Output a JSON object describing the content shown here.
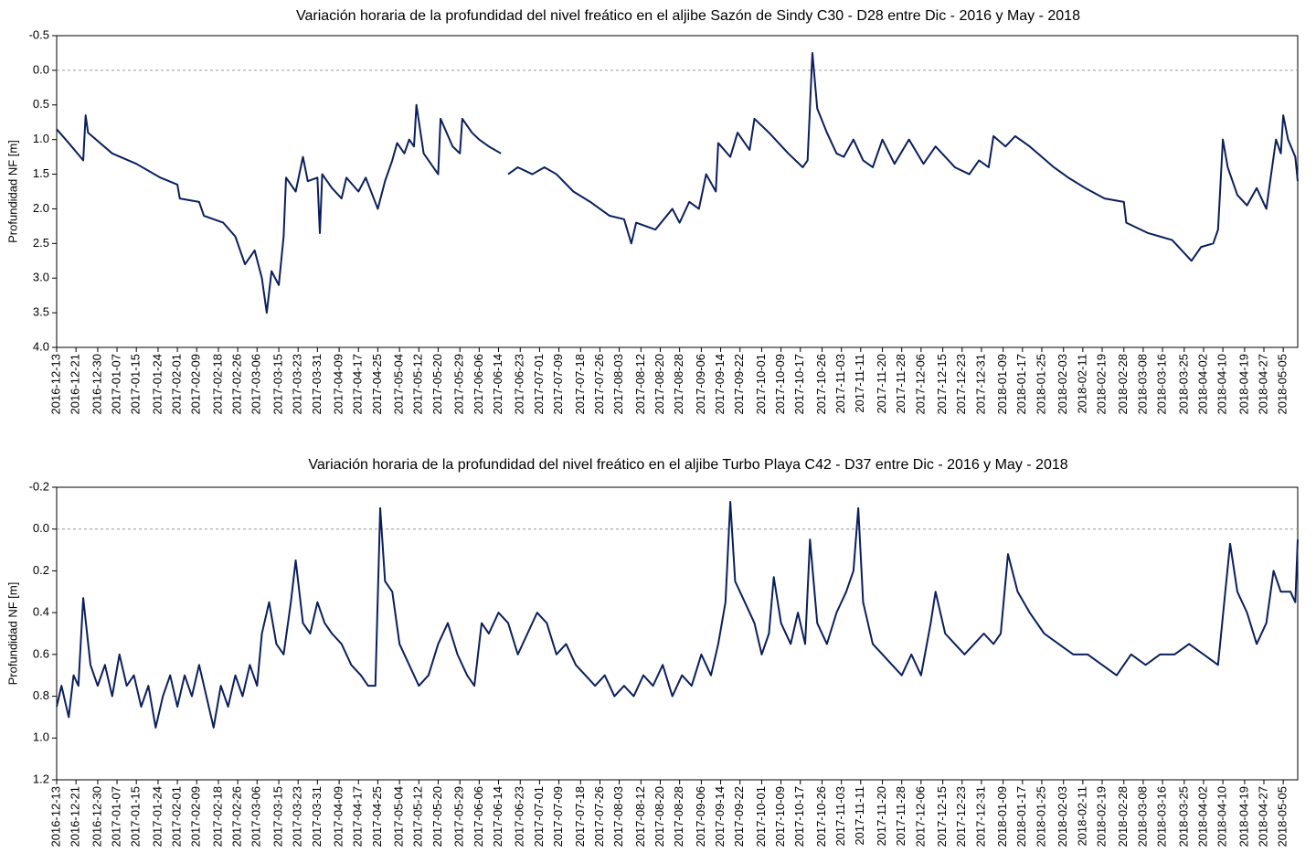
{
  "chart_data": [
    {
      "type": "line",
      "title": "Variación horaria de la profundidad del nivel freático en el aljibe Sazón de Sindy C30 - D28 entre Dic - 2016 y May - 2018",
      "y_label": "Profundidad NF [m]",
      "y_inverted": true,
      "hline": 0,
      "color": "#0b1f5c",
      "xlim": [
        "2016-12-13",
        "2018-05-11"
      ],
      "ylim": [
        -0.5,
        4.0
      ],
      "yticks": [
        -0.5,
        {
          "value": 0,
          "label": "0.0"
        },
        0.5,
        {
          "value": 1,
          "label": "1.0"
        },
        1.5,
        {
          "value": 2,
          "label": "2.0"
        },
        2.5,
        {
          "value": 3,
          "label": "3.0"
        },
        3.5,
        {
          "value": 4,
          "label": "4.0"
        }
      ],
      "xticks": [
        "2016-12-13",
        "2016-12-21",
        "2016-12-30",
        "2017-01-07",
        "2017-01-15",
        "2017-01-24",
        "2017-02-01",
        "2017-02-09",
        "2017-02-18",
        "2017-02-26",
        "2017-03-06",
        "2017-03-15",
        "2017-03-23",
        "2017-03-31",
        "2017-04-09",
        "2017-04-17",
        "2017-04-25",
        "2017-05-04",
        "2017-05-12",
        "2017-05-20",
        "2017-05-29",
        "2017-06-06",
        "2017-06-14",
        "2017-06-23",
        "2017-07-01",
        "2017-07-09",
        "2017-07-18",
        "2017-07-26",
        "2017-08-03",
        "2017-08-12",
        "2017-08-20",
        "2017-08-28",
        "2017-09-06",
        "2017-09-14",
        "2017-09-22",
        "2017-10-01",
        "2017-10-09",
        "2017-10-17",
        "2017-10-26",
        "2017-11-03",
        "2017-11-11",
        "2017-11-20",
        "2017-11-28",
        "2017-12-06",
        "2017-12-15",
        "2017-12-23",
        "2017-12-31",
        "2018-01-09",
        "2018-01-17",
        "2018-01-25",
        "2018-02-03",
        "2018-02-11",
        "2018-02-19",
        "2018-02-28",
        "2018-03-08",
        "2018-03-16",
        "2018-03-25",
        "2018-04-02",
        "2018-04-10",
        "2018-04-19",
        "2018-04-27",
        "2018-05-05"
      ],
      "x": [
        "2016-12-13",
        "2016-12-18",
        "2016-12-24",
        "2016-12-25",
        "2016-12-26",
        "2016-12-31",
        "2017-01-05",
        "2017-01-15",
        "2017-01-25",
        "2017-02-01",
        "2017-02-02",
        "2017-02-10",
        "2017-02-12",
        "2017-02-20",
        "2017-02-25",
        "2017-03-01",
        "2017-03-05",
        "2017-03-08",
        "2017-03-10",
        "2017-03-12",
        "2017-03-15",
        "2017-03-17",
        "2017-03-18",
        "2017-03-22",
        "2017-03-25",
        "2017-03-27",
        "2017-03-31",
        "2017-04-01",
        "2017-04-02",
        "2017-04-06",
        "2017-04-10",
        "2017-04-12",
        "2017-04-17",
        "2017-04-20",
        "2017-04-25",
        "2017-04-28",
        "2017-05-01",
        "2017-05-03",
        "2017-05-06",
        "2017-05-08",
        "2017-05-10",
        "2017-05-11",
        "2017-05-14",
        "2017-05-20",
        "2017-05-21",
        "2017-05-26",
        "2017-05-29",
        "2017-05-30",
        "2017-06-03",
        "2017-06-06",
        "2017-06-10",
        "2017-06-15",
        "2017-06-16",
        "2017-06-18",
        "2017-06-22",
        "2017-06-28",
        "2017-07-03",
        "2017-07-08",
        "2017-07-15",
        "2017-07-22",
        "2017-07-30",
        "2017-08-05",
        "2017-08-08",
        "2017-08-10",
        "2017-08-18",
        "2017-08-25",
        "2017-08-28",
        "2017-09-01",
        "2017-09-05",
        "2017-09-08",
        "2017-09-12",
        "2017-09-13",
        "2017-09-18",
        "2017-09-21",
        "2017-09-26",
        "2017-09-28",
        "2017-10-04",
        "2017-10-12",
        "2017-10-18",
        "2017-10-20",
        "2017-10-22",
        "2017-10-24",
        "2017-10-28",
        "2017-11-01",
        "2017-11-04",
        "2017-11-08",
        "2017-11-12",
        "2017-11-16",
        "2017-11-20",
        "2017-11-25",
        "2017-12-01",
        "2017-12-07",
        "2017-12-12",
        "2017-12-20",
        "2017-12-26",
        "2017-12-30",
        "2018-01-03",
        "2018-01-05",
        "2018-01-10",
        "2018-01-14",
        "2018-01-20",
        "2018-01-30",
        "2018-02-05",
        "2018-02-12",
        "2018-02-20",
        "2018-02-28",
        "2018-03-01",
        "2018-03-10",
        "2018-03-20",
        "2018-03-28",
        "2018-04-01",
        "2018-04-06",
        "2018-04-08",
        "2018-04-10",
        "2018-04-12",
        "2018-04-16",
        "2018-04-20",
        "2018-04-24",
        "2018-04-28",
        "2018-04-30",
        "2018-05-02",
        "2018-05-04",
        "2018-05-05",
        "2018-05-07",
        "2018-05-10",
        "2018-05-11"
      ],
      "values": [
        0.85,
        1.05,
        1.3,
        0.65,
        0.9,
        1.05,
        1.2,
        1.35,
        1.55,
        1.65,
        1.85,
        1.9,
        2.1,
        2.2,
        2.4,
        2.8,
        2.6,
        3.0,
        3.5,
        2.9,
        3.1,
        2.4,
        1.55,
        1.75,
        1.25,
        1.6,
        1.55,
        2.35,
        1.5,
        1.7,
        1.85,
        1.55,
        1.75,
        1.55,
        2.0,
        1.6,
        1.3,
        1.05,
        1.2,
        1.0,
        1.1,
        0.5,
        1.2,
        1.5,
        0.7,
        1.1,
        1.2,
        0.7,
        0.9,
        1.0,
        1.1,
        1.2,
        null,
        1.5,
        1.4,
        1.5,
        1.4,
        1.5,
        1.75,
        1.9,
        2.1,
        2.15,
        2.5,
        2.2,
        2.3,
        2.0,
        2.2,
        1.9,
        2.0,
        1.5,
        1.75,
        1.05,
        1.25,
        0.9,
        1.15,
        0.7,
        0.9,
        1.2,
        1.4,
        1.3,
        -0.25,
        0.55,
        0.9,
        1.2,
        1.25,
        1.0,
        1.3,
        1.4,
        1.0,
        1.35,
        1.0,
        1.35,
        1.1,
        1.4,
        1.5,
        1.3,
        1.4,
        0.95,
        1.1,
        0.95,
        1.1,
        1.4,
        1.55,
        1.7,
        1.85,
        1.9,
        2.2,
        2.35,
        2.45,
        2.75,
        2.55,
        2.5,
        2.3,
        1.0,
        1.4,
        1.8,
        1.95,
        1.7,
        2.0,
        1.5,
        1.0,
        1.2,
        0.65,
        1.0,
        1.25,
        1.6
      ]
    },
    {
      "type": "line",
      "title": "Variación horaria de la profundidad del nivel freático en el aljibe Turbo Playa C42 - D37 entre Dic - 2016 y May - 2018",
      "y_label": "Profundidad NF [m]",
      "y_inverted": true,
      "hline": 0,
      "color": "#0b1f5c",
      "xlim": [
        "2016-12-13",
        "2018-05-11"
      ],
      "ylim": [
        -0.2,
        1.2
      ],
      "yticks": [
        -0.2,
        {
          "value": 0,
          "label": "0.0"
        },
        0.2,
        0.4,
        0.6,
        0.8,
        {
          "value": 1,
          "label": "1.0"
        },
        1.2
      ],
      "xticks": [
        "2016-12-13",
        "2016-12-21",
        "2016-12-30",
        "2017-01-07",
        "2017-01-15",
        "2017-01-24",
        "2017-02-01",
        "2017-02-09",
        "2017-02-18",
        "2017-02-26",
        "2017-03-06",
        "2017-03-15",
        "2017-03-23",
        "2017-03-31",
        "2017-04-09",
        "2017-04-17",
        "2017-04-25",
        "2017-05-04",
        "2017-05-12",
        "2017-05-20",
        "2017-05-29",
        "2017-06-06",
        "2017-06-14",
        "2017-06-23",
        "2017-07-01",
        "2017-07-09",
        "2017-07-18",
        "2017-07-26",
        "2017-08-03",
        "2017-08-12",
        "2017-08-20",
        "2017-08-28",
        "2017-09-06",
        "2017-09-14",
        "2017-09-22",
        "2017-10-01",
        "2017-10-09",
        "2017-10-17",
        "2017-10-26",
        "2017-11-03",
        "2017-11-11",
        "2017-11-20",
        "2017-11-28",
        "2017-12-06",
        "2017-12-15",
        "2017-12-23",
        "2017-12-31",
        "2018-01-09",
        "2018-01-17",
        "2018-01-25",
        "2018-02-03",
        "2018-02-11",
        "2018-02-19",
        "2018-02-28",
        "2018-03-08",
        "2018-03-16",
        "2018-03-25",
        "2018-04-02",
        "2018-04-10",
        "2018-04-19",
        "2018-04-27",
        "2018-05-05"
      ],
      "x": [
        "2016-12-13",
        "2016-12-15",
        "2016-12-18",
        "2016-12-20",
        "2016-12-22",
        "2016-12-24",
        "2016-12-27",
        "2016-12-30",
        "2017-01-02",
        "2017-01-05",
        "2017-01-08",
        "2017-01-11",
        "2017-01-14",
        "2017-01-17",
        "2017-01-20",
        "2017-01-23",
        "2017-01-26",
        "2017-01-29",
        "2017-02-01",
        "2017-02-04",
        "2017-02-07",
        "2017-02-10",
        "2017-02-13",
        "2017-02-16",
        "2017-02-19",
        "2017-02-22",
        "2017-02-25",
        "2017-02-28",
        "2017-03-03",
        "2017-03-06",
        "2017-03-08",
        "2017-03-11",
        "2017-03-14",
        "2017-03-17",
        "2017-03-20",
        "2017-03-22",
        "2017-03-25",
        "2017-03-28",
        "2017-03-31",
        "2017-04-03",
        "2017-04-06",
        "2017-04-10",
        "2017-04-14",
        "2017-04-18",
        "2017-04-21",
        "2017-04-24",
        "2017-04-26",
        "2017-04-28",
        "2017-05-01",
        "2017-05-04",
        "2017-05-08",
        "2017-05-12",
        "2017-05-16",
        "2017-05-20",
        "2017-05-24",
        "2017-05-28",
        "2017-06-01",
        "2017-06-04",
        "2017-06-07",
        "2017-06-10",
        "2017-06-14",
        "2017-06-18",
        "2017-06-22",
        "2017-06-26",
        "2017-06-30",
        "2017-07-04",
        "2017-07-08",
        "2017-07-12",
        "2017-07-16",
        "2017-07-20",
        "2017-07-24",
        "2017-07-28",
        "2017-08-01",
        "2017-08-05",
        "2017-08-09",
        "2017-08-13",
        "2017-08-17",
        "2017-08-21",
        "2017-08-25",
        "2017-08-29",
        "2017-09-02",
        "2017-09-06",
        "2017-09-10",
        "2017-09-13",
        "2017-09-16",
        "2017-09-18",
        "2017-09-20",
        "2017-09-24",
        "2017-09-28",
        "2017-10-01",
        "2017-10-04",
        "2017-10-06",
        "2017-10-09",
        "2017-10-13",
        "2017-10-16",
        "2017-10-19",
        "2017-10-21",
        "2017-10-24",
        "2017-10-28",
        "2017-11-01",
        "2017-11-05",
        "2017-11-08",
        "2017-11-10",
        "2017-11-12",
        "2017-11-16",
        "2017-11-20",
        "2017-11-24",
        "2017-11-28",
        "2017-12-02",
        "2017-12-06",
        "2017-12-10",
        "2017-12-12",
        "2017-12-16",
        "2017-12-20",
        "2017-12-24",
        "2017-12-28",
        "2018-01-01",
        "2018-01-05",
        "2018-01-08",
        "2018-01-11",
        "2018-01-15",
        "2018-01-20",
        "2018-01-26",
        "2018-02-01",
        "2018-02-07",
        "2018-02-13",
        "2018-02-19",
        "2018-02-25",
        "2018-03-03",
        "2018-03-09",
        "2018-03-15",
        "2018-03-21",
        "2018-03-27",
        "2018-04-02",
        "2018-04-08",
        "2018-04-11",
        "2018-04-13",
        "2018-04-16",
        "2018-04-20",
        "2018-04-24",
        "2018-04-28",
        "2018-05-01",
        "2018-05-04",
        "2018-05-08",
        "2018-05-10",
        "2018-05-11"
      ],
      "values": [
        0.85,
        0.75,
        0.9,
        0.7,
        0.75,
        0.33,
        0.65,
        0.75,
        0.65,
        0.8,
        0.6,
        0.75,
        0.7,
        0.85,
        0.75,
        0.95,
        0.8,
        0.7,
        0.85,
        0.7,
        0.8,
        0.65,
        0.8,
        0.95,
        0.75,
        0.85,
        0.7,
        0.8,
        0.65,
        0.75,
        0.5,
        0.35,
        0.55,
        0.6,
        0.35,
        0.15,
        0.45,
        0.5,
        0.35,
        0.45,
        0.5,
        0.55,
        0.65,
        0.7,
        0.75,
        0.75,
        -0.1,
        0.25,
        0.3,
        0.55,
        0.65,
        0.75,
        0.7,
        0.55,
        0.45,
        0.6,
        0.7,
        0.75,
        0.45,
        0.5,
        0.4,
        0.45,
        0.6,
        0.5,
        0.4,
        0.45,
        0.6,
        0.55,
        0.65,
        0.7,
        0.75,
        0.7,
        0.8,
        0.75,
        0.8,
        0.7,
        0.75,
        0.65,
        0.8,
        0.7,
        0.75,
        0.6,
        0.7,
        0.55,
        0.35,
        -0.13,
        0.25,
        0.35,
        0.45,
        0.6,
        0.5,
        0.23,
        0.45,
        0.55,
        0.4,
        0.55,
        0.05,
        0.45,
        0.55,
        0.4,
        0.3,
        0.2,
        -0.1,
        0.35,
        0.55,
        0.6,
        0.65,
        0.7,
        0.6,
        0.7,
        0.45,
        0.3,
        0.5,
        0.55,
        0.6,
        0.55,
        0.5,
        0.55,
        0.5,
        0.12,
        0.3,
        0.4,
        0.5,
        0.55,
        0.6,
        0.6,
        0.65,
        0.7,
        0.6,
        0.65,
        0.6,
        0.6,
        0.55,
        0.6,
        0.65,
        0.3,
        0.07,
        0.3,
        0.4,
        0.55,
        0.45,
        0.2,
        0.3,
        0.3,
        0.35,
        0.05
      ]
    }
  ]
}
